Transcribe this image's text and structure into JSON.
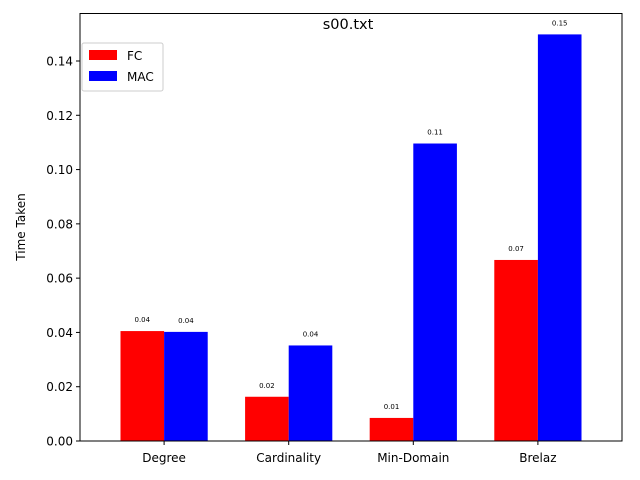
{
  "chart_data": {
    "type": "bar",
    "title": "s00.txt",
    "xlabel": "",
    "ylabel": "Time Taken",
    "categories": [
      "Degree",
      "Cardinality",
      "Min-Domain",
      "Brelaz"
    ],
    "series": [
      {
        "name": "FC",
        "color": "#ff0000",
        "values": [
          0.0405,
          0.0163,
          0.0085,
          0.0667
        ],
        "labels": [
          "0.04",
          "0.02",
          "0.01",
          "0.07"
        ]
      },
      {
        "name": "MAC",
        "color": "#0000ff",
        "values": [
          0.0402,
          0.0352,
          0.1096,
          0.1498
        ],
        "labels": [
          "0.04",
          "0.04",
          "0.11",
          "0.15"
        ]
      }
    ],
    "ylim": [
      0,
      0.1575
    ],
    "yticks": [
      "0.00",
      "0.02",
      "0.04",
      "0.06",
      "0.08",
      "0.10",
      "0.12",
      "0.14"
    ],
    "grid": false,
    "legend": "top-left"
  }
}
